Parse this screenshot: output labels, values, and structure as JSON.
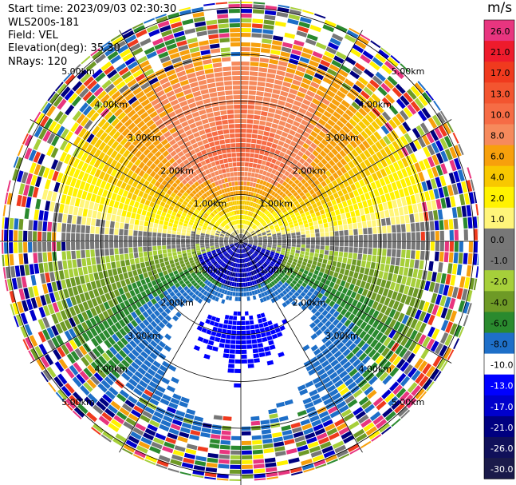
{
  "header": {
    "start_time": "Start time: 2023/09/03 02:30:30",
    "instrument": "WLS200s-181",
    "field": "Field: VEL",
    "elevation": "Elevation(deg): 35.30",
    "nrays": "NRays: 120"
  },
  "colorbar": {
    "title": "m/s",
    "ticks": [
      "26.0",
      "21.0",
      "17.0",
      "13.0",
      "10.0",
      "8.0",
      "6.0",
      "4.0",
      "2.0",
      "1.0",
      "0.0",
      "-1.0",
      "-2.0",
      "-4.0",
      "-6.0",
      "-8.0",
      "-10.0",
      "-13.0",
      "-17.0",
      "-21.0",
      "-26.0",
      "-30.0"
    ],
    "colors": [
      "#e8357f",
      "#ee1b2c",
      "#f03a1e",
      "#f35530",
      "#f66c45",
      "#f68a5c",
      "#f7a00c",
      "#f8c800",
      "#fff200",
      "#fff57a",
      "#777777",
      "#777777",
      "#a6cf3a",
      "#6e9a26",
      "#2a8a2e",
      "#1e6fc8",
      "#ffffff",
      "#0000ff",
      "#0000cc",
      "#000080",
      "#10105a",
      "#1a1a4a"
    ]
  },
  "chart_data": {
    "type": "ppi",
    "field": "VEL",
    "units": "m/s",
    "nrays": 120,
    "elevation_deg": 35.3,
    "range_rings_km": [
      1.0,
      2.0,
      3.0,
      4.0,
      5.0
    ],
    "range_ring_labels": [
      "1.00km",
      "2.00km",
      "3.00km",
      "4.00km",
      "5.00km"
    ],
    "max_range_km": 5.6,
    "vmin": -30.0,
    "vmax": 26.0
  }
}
